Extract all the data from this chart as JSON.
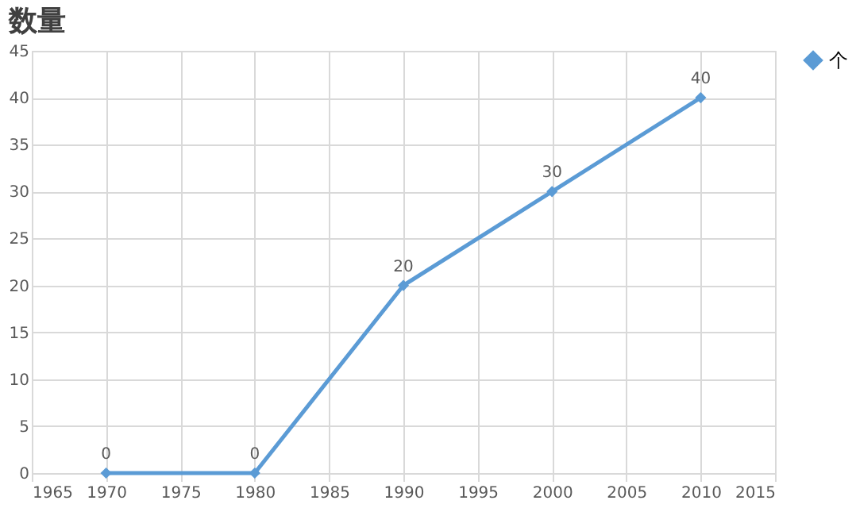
{
  "chart_data": {
    "type": "line",
    "title": "数量",
    "x": [
      1970,
      1980,
      1990,
      2000,
      2010
    ],
    "series": [
      {
        "name": "个",
        "color": "#5b9bd5",
        "values": [
          0,
          0,
          20,
          30,
          40
        ]
      }
    ],
    "xlim": [
      1965,
      2015
    ],
    "xticks": [
      1965,
      1970,
      1975,
      1980,
      1985,
      1990,
      1995,
      2000,
      2005,
      2010,
      2015
    ],
    "ylim": [
      0,
      45
    ],
    "yticks": [
      0,
      5,
      10,
      15,
      20,
      25,
      30,
      35,
      40,
      45
    ],
    "grid": true,
    "legend": "right",
    "marker": "diamond",
    "line_style": "solid",
    "data_labels": true
  }
}
